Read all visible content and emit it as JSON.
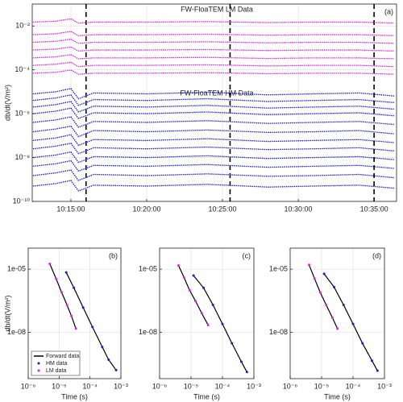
{
  "chart_data": [
    {
      "type": "line",
      "xscale": "time",
      "yscale": "log",
      "label": "(a)",
      "ylabel": "db/dt(V/m²)",
      "annotations": [
        "FW-FloaTEM LM Data",
        "FW-FloaTEM HM Data"
      ],
      "markers": [
        "10:16:00",
        "10:25:30",
        "10:35:00"
      ],
      "xlim": [
        "10:12:27",
        "10:36:29"
      ],
      "xticks": [
        "10:15:00",
        "10:20:00",
        "10:25:00",
        "10:30:00",
        "10:35:00"
      ],
      "ylim": [
        1e-10,
        0.1
      ],
      "yticks": [
        {
          "value": 1e-10,
          "label": "10⁻¹⁰"
        },
        {
          "value": 1e-08,
          "label": "10⁻⁸"
        },
        {
          "value": 1e-06,
          "label": "10⁻⁶"
        },
        {
          "value": 0.0001,
          "label": "10⁻⁴"
        },
        {
          "value": 0.01,
          "label": "10⁻²"
        }
      ],
      "grid": true,
      "x": [
        "10:12:30",
        "10:14:00",
        "10:15:00",
        "10:15:30",
        "10:16:30",
        "10:20:00",
        "10:24:00",
        "10:28:00",
        "10:31:00",
        "10:34:00",
        "10:36:20"
      ],
      "series": [
        {
          "color": "#e020e0",
          "values": [
            0.015,
            0.0165,
            0.021,
            0.0135,
            0.015,
            0.015,
            0.0158,
            0.0143,
            0.015,
            0.015,
            0.0135
          ]
        },
        {
          "color": "#e020e0",
          "values": [
            0.004,
            0.0044,
            0.0056,
            0.0036,
            0.004,
            0.004,
            0.0042,
            0.0038,
            0.004,
            0.004,
            0.0036
          ]
        },
        {
          "color": "#e020e0",
          "values": [
            0.0018,
            0.002,
            0.0025,
            0.0016,
            0.0018,
            0.0018,
            0.0019,
            0.0017,
            0.0018,
            0.0018,
            0.0016
          ]
        },
        {
          "color": "#e020e0",
          "values": [
            0.0008,
            0.00088,
            0.0011,
            0.00072,
            0.0008,
            0.0008,
            0.00084,
            0.00076,
            0.0008,
            0.0008,
            0.00072
          ]
        },
        {
          "color": "#e020e0",
          "values": [
            0.00035,
            0.00039,
            0.00049,
            0.00032,
            0.00035,
            0.00035,
            0.00037,
            0.00033,
            0.00035,
            0.00035,
            0.00032
          ]
        },
        {
          "color": "#e020e0",
          "values": [
            0.00016,
            0.00018,
            0.00022,
            0.00014,
            0.00016,
            0.00016,
            0.00017,
            0.00015,
            0.00016,
            0.00016,
            0.00014
          ]
        },
        {
          "color": "#e020e0",
          "values": [
            7e-05,
            7.7e-05,
            9.8e-05,
            6.3e-05,
            7e-05,
            7e-05,
            7.4e-05,
            6.7e-05,
            7e-05,
            7e-05,
            6.3e-05
          ]
        },
        {
          "color": "#1a1ad0",
          "values": [
            8e-06,
            1e-05,
            1.4e-05,
            4.8e-06,
            8.8e-06,
            8e-06,
            9.6e-06,
            7.2e-06,
            8e-06,
            8.8e-06,
            6.4e-06
          ]
        },
        {
          "color": "#1a1ad0",
          "values": [
            4e-06,
            5.2e-06,
            7.2e-06,
            2.4e-06,
            4.4e-06,
            4e-06,
            4.8e-06,
            3.6e-06,
            4e-06,
            4.4e-06,
            3.2e-06
          ]
        },
        {
          "color": "#1a1ad0",
          "values": [
            2e-06,
            2.6e-06,
            3.6e-06,
            1.2e-06,
            2.2e-06,
            2e-06,
            2.4e-06,
            1.8e-06,
            2e-06,
            2.2e-06,
            1.6e-06
          ]
        },
        {
          "color": "#1a1ad0",
          "values": [
            1e-06,
            1.3e-06,
            1.8e-06,
            6e-07,
            1.1e-06,
            1e-06,
            1.2e-06,
            9e-07,
            1e-06,
            1.1e-06,
            8e-07
          ]
        },
        {
          "color": "#1a1ad0",
          "values": [
            4e-07,
            5.2e-07,
            7.2e-07,
            2.4e-07,
            4.4e-07,
            4e-07,
            4.8e-07,
            3.6e-07,
            4e-07,
            4.4e-07,
            3.2e-07
          ]
        },
        {
          "color": "#1a1ad0",
          "values": [
            1.5e-07,
            2e-07,
            2.7e-07,
            9e-08,
            1.7e-07,
            1.5e-07,
            1.8e-07,
            1.4e-07,
            1.5e-07,
            1.7e-07,
            1.2e-07
          ]
        },
        {
          "color": "#1a1ad0",
          "values": [
            6e-08,
            7.8e-08,
            1.1e-07,
            3.6e-08,
            6.6e-08,
            6e-08,
            7.2e-08,
            5.4e-08,
            6e-08,
            6.6e-08,
            4.8e-08
          ]
        },
        {
          "color": "#1a1ad0",
          "values": [
            2.5e-08,
            3.3e-08,
            4.5e-08,
            1.5e-08,
            2.8e-08,
            2.5e-08,
            3e-08,
            2.3e-08,
            2.5e-08,
            2.8e-08,
            2e-08
          ]
        },
        {
          "color": "#1a1ad0",
          "values": [
            1e-08,
            1.3e-08,
            1.8e-08,
            6e-09,
            1.1e-08,
            1e-08,
            1.2e-08,
            9e-09,
            1e-08,
            1.1e-08,
            8e-09
          ]
        },
        {
          "color": "#1a1ad0",
          "values": [
            4e-09,
            5.2e-09,
            7.2e-09,
            2.4e-09,
            4.4e-09,
            4e-09,
            4.8e-09,
            3.6e-09,
            4e-09,
            4.4e-09,
            3.2e-09
          ]
        },
        {
          "color": "#1a1ad0",
          "values": [
            1.5e-09,
            2e-09,
            2.7e-09,
            9e-10,
            1.7e-09,
            1.5e-09,
            1.8e-09,
            1.4e-09,
            1.5e-09,
            1.7e-09,
            1.2e-09
          ]
        },
        {
          "color": "#1a1ad0",
          "values": [
            5e-10,
            6.5e-10,
            9e-10,
            3e-10,
            5.5e-10,
            5e-10,
            6e-10,
            4.5e-10,
            5e-10,
            5.5e-10,
            4e-10
          ]
        }
      ]
    },
    {
      "type": "scatter",
      "xscale": "log",
      "yscale": "log",
      "label": "(b)",
      "ylabel": "db/dt(V/m²)",
      "xlabel": "Time (s)",
      "forward_color": "#000000",
      "legend": {
        "position": "lower left",
        "labels": [
          "Forward data",
          "HM data",
          "LM data"
        ]
      },
      "xlim": [
        1e-06,
        0.001
      ],
      "xticks": [
        {
          "value": 1e-06,
          "label": "10⁻⁶"
        },
        {
          "value": 1e-05,
          "label": "10⁻⁵"
        },
        {
          "value": 0.0001,
          "label": "10⁻⁴"
        },
        {
          "value": 0.001,
          "label": "10⁻³"
        }
      ],
      "ylim": [
        6.3e-11,
        0.0001
      ],
      "yticks": [
        {
          "value": 1e-05,
          "label": "1e-05"
        },
        {
          "value": 1e-08,
          "label": "1e-08"
        }
      ],
      "grid": true,
      "series": [
        {
          "color": "#1a1ad0",
          "x": [
            1.7e-05,
            3e-05,
            6e-05,
            0.00012,
            0.00025,
            0.0004,
            0.0007
          ],
          "values": [
            7e-06,
            1.3e-06,
            1.5e-07,
            1.8e-08,
            2e-09,
            5e-10,
            1.6e-10
          ],
          "forward": [
            7e-06,
            1.3e-06,
            1.5e-07,
            1.8e-08,
            2e-09,
            5e-10,
            1.6e-10
          ]
        },
        {
          "color": "#e020e0",
          "x": [
            5e-06,
            8e-06,
            1.2e-05,
            1.8e-05,
            2.5e-05,
            3.5e-05
          ],
          "values": [
            1.8e-05,
            3.5e-06,
            8e-07,
            2e-07,
            6e-08,
            1.5e-08
          ],
          "forward": [
            1.8e-05,
            3.5e-06,
            8e-07,
            2e-07,
            6e-08,
            1.5e-08
          ]
        }
      ]
    },
    {
      "type": "scatter",
      "xscale": "log",
      "yscale": "log",
      "label": "(c)",
      "xlabel": "Time (s)",
      "forward_color": "#000000",
      "xlim": [
        1e-06,
        0.001
      ],
      "xticks": [
        {
          "value": 1e-06,
          "label": "10⁻⁶"
        },
        {
          "value": 1e-05,
          "label": "10⁻⁵"
        },
        {
          "value": 0.0001,
          "label": "10⁻⁴"
        },
        {
          "value": 0.001,
          "label": "10⁻³"
        }
      ],
      "ylim": [
        6.3e-11,
        0.0001
      ],
      "yticks": [
        {
          "value": 1e-05,
          "label": "1e-05"
        },
        {
          "value": 1e-08,
          "label": "1e-08"
        }
      ],
      "grid": true,
      "series": [
        {
          "color": "#1a1ad0",
          "x": [
            1.2e-05,
            2.5e-05,
            5e-05,
            0.0001,
            0.0002,
            0.0004,
            0.0006
          ],
          "values": [
            5e-06,
            1.3e-06,
            2e-07,
            2.5e-08,
            3e-09,
            4e-10,
            1.3e-10
          ],
          "forward": [
            5e-06,
            1.3e-06,
            2e-07,
            2.5e-08,
            3e-09,
            4e-10,
            1.3e-10
          ]
        },
        {
          "color": "#e020e0",
          "x": [
            4e-06,
            6e-06,
            9e-06,
            1.4e-05,
            2.2e-05,
            3.5e-05
          ],
          "values": [
            1.5e-05,
            4e-06,
            1e-06,
            3e-07,
            8e-08,
            2.2e-08
          ],
          "forward": [
            1.5e-05,
            4e-06,
            1e-06,
            3e-07,
            8e-08,
            2.2e-08
          ]
        }
      ]
    },
    {
      "type": "scatter",
      "xscale": "log",
      "yscale": "log",
      "label": "(d)",
      "xlabel": "Time (s)",
      "forward_color": "#000000",
      "xlim": [
        1e-06,
        0.001
      ],
      "xticks": [
        {
          "value": 1e-06,
          "label": "10⁻⁶"
        },
        {
          "value": 1e-05,
          "label": "10⁻⁵"
        },
        {
          "value": 0.0001,
          "label": "10⁻⁴"
        },
        {
          "value": 0.001,
          "label": "10⁻³"
        }
      ],
      "ylim": [
        6.3e-11,
        0.0001
      ],
      "yticks": [
        {
          "value": 1e-05,
          "label": "1e-05"
        },
        {
          "value": 1e-08,
          "label": "1e-08"
        }
      ],
      "grid": true,
      "series": [
        {
          "color": "#1a1ad0",
          "x": [
            1.2e-05,
            2.5e-05,
            5e-05,
            0.0001,
            0.0002,
            0.0004,
            0.0006
          ],
          "values": [
            6e-06,
            1.4e-06,
            2e-07,
            2.5e-08,
            3e-09,
            4.5e-10,
            1.5e-10
          ],
          "forward": [
            6e-06,
            1.4e-06,
            2e-07,
            2.5e-08,
            3e-09,
            4.5e-10,
            1.5e-10
          ]
        },
        {
          "color": "#e020e0",
          "x": [
            4e-06,
            6e-06,
            9e-06,
            1.4e-05,
            2.2e-05,
            3.2e-05
          ],
          "values": [
            1.6e-05,
            3.5e-06,
            8e-07,
            2e-07,
            5e-08,
            1.5e-08
          ],
          "forward": [
            1.6e-05,
            3.5e-06,
            8e-07,
            2e-07,
            5e-08,
            1.5e-08
          ]
        }
      ]
    }
  ]
}
